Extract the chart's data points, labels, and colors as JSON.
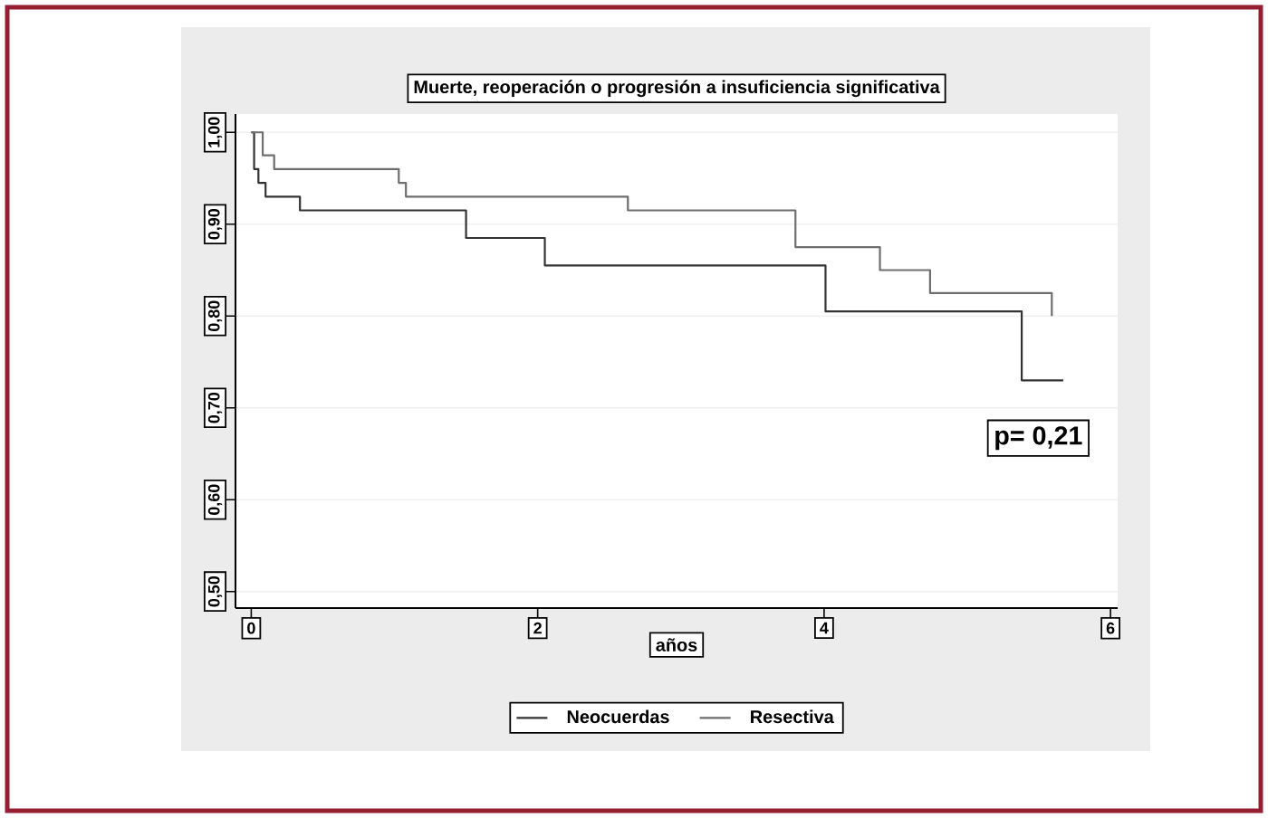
{
  "chart_data": {
    "type": "step",
    "title": "Muerte, reoperación o progresión a insuficiencia significativa",
    "xlabel": "años",
    "xlim": [
      -0.11,
      6.05
    ],
    "ylim": [
      0.482,
      1.02
    ],
    "xticks": [
      0,
      2,
      4,
      6
    ],
    "yticks": [
      {
        "value": 0.5,
        "label": "0,50"
      },
      {
        "value": 0.6,
        "label": "0,60"
      },
      {
        "value": 0.7,
        "label": "0,70"
      },
      {
        "value": 0.8,
        "label": "0,80"
      },
      {
        "value": 0.9,
        "label": "0,90"
      },
      {
        "value": 1.0,
        "label": "1,00"
      }
    ],
    "grid": "y",
    "legend": "bottom",
    "line_style": "solid",
    "annotations": [
      "p= 0,21"
    ],
    "series": [
      {
        "name": "Neocuerdas",
        "color": "#333333",
        "x": [
          0,
          0.02,
          0.05,
          0.1,
          0.34,
          1.5,
          2.05,
          4.01,
          5.38,
          5.67
        ],
        "values": [
          1.0,
          0.96,
          0.945,
          0.93,
          0.915,
          0.885,
          0.855,
          0.805,
          0.73,
          0.73
        ]
      },
      {
        "name": "Resectiva",
        "color": "#6e6e6e",
        "x": [
          0,
          0.08,
          0.16,
          1.03,
          1.08,
          2.63,
          3.8,
          4.39,
          4.74,
          5.59
        ],
        "values": [
          1.0,
          0.975,
          0.96,
          0.945,
          0.93,
          0.915,
          0.875,
          0.85,
          0.825,
          0.8
        ]
      }
    ]
  }
}
